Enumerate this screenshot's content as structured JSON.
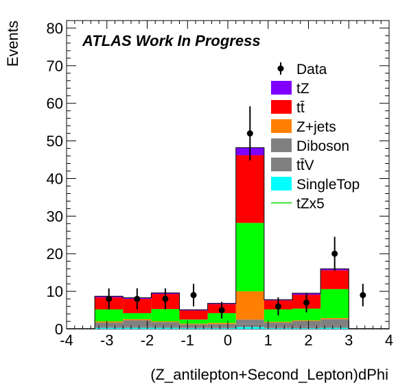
{
  "chart_data": {
    "type": "bar",
    "stacked": true,
    "title": "ATLAS Work In Progress",
    "xlabel": "(Z_antilepton+Second_Lepton)dPhi",
    "ylabel": "Events",
    "xlim": [
      -4,
      4
    ],
    "ylim": [
      0,
      82
    ],
    "x_ticks": [
      "-4",
      "-3",
      "-2",
      "-1",
      "0",
      "1",
      "2",
      "3",
      "4"
    ],
    "y_ticks": [
      "0",
      "10",
      "20",
      "30",
      "40",
      "50",
      "60",
      "70",
      "80"
    ],
    "bin_edges": [
      -3.3,
      -2.6,
      -1.9,
      -1.2,
      -0.5,
      0.2,
      0.9,
      1.6,
      2.3,
      3.0
    ],
    "stack_order": [
      "SingleTop",
      "ttV",
      "Diboson",
      "Z+jets",
      "tZx5",
      "tt",
      "tZ"
    ],
    "legend": {
      "position": "top-right",
      "entries": [
        {
          "label": "Data",
          "style": "marker"
        },
        {
          "label": "tZ",
          "color": "#7f00ff",
          "style": "fill"
        },
        {
          "label": "tt̄",
          "color": "#ff0000",
          "style": "fill"
        },
        {
          "label": "Z+jets",
          "color": "#ff7f00",
          "style": "fill"
        },
        {
          "label": "Diboson",
          "color": "#808080",
          "style": "fill"
        },
        {
          "label": "tt̄V",
          "color": "#808080",
          "style": "fill"
        },
        {
          "label": "SingleTop",
          "color": "#00ffff",
          "style": "fill"
        },
        {
          "label": "tZx5",
          "color": "#00dd00",
          "style": "line"
        }
      ]
    },
    "series": [
      {
        "name": "SingleTop",
        "color": "#00ffff",
        "values": [
          0.3,
          0.3,
          0.3,
          0.2,
          0.2,
          0.5,
          0.2,
          0.2,
          0.3
        ]
      },
      {
        "name": "ttV",
        "color": "#808080",
        "values": [
          0.4,
          0.4,
          0.3,
          0.2,
          0.2,
          0.8,
          0.3,
          0.4,
          0.5
        ]
      },
      {
        "name": "Diboson",
        "color": "#808080",
        "values": [
          1.0,
          1.6,
          1.2,
          0.8,
          0.9,
          1.2,
          1.2,
          1.5,
          1.8
        ]
      },
      {
        "name": "Z+jets",
        "color": "#ff7f00",
        "values": [
          0.3,
          0.3,
          0.2,
          0.2,
          0.3,
          7.5,
          0.2,
          0.2,
          0.3
        ]
      },
      {
        "name": "tZx5",
        "color": "#00ff00",
        "values": [
          3.2,
          1.6,
          3.3,
          1.1,
          2.6,
          18.2,
          3.3,
          3.1,
          7.7
        ]
      },
      {
        "name": "tt",
        "color": "#ff0000",
        "values": [
          3.2,
          3.8,
          4.0,
          2.4,
          2.4,
          18.0,
          2.4,
          3.7,
          5.0
        ]
      },
      {
        "name": "tZ",
        "color": "#7f00ff",
        "values": [
          0.3,
          0.3,
          0.3,
          0.2,
          0.2,
          2.0,
          0.2,
          0.4,
          0.4
        ]
      }
    ],
    "data": {
      "name": "Data",
      "x": [
        -2.95,
        -2.25,
        -1.55,
        -0.85,
        -0.15,
        0.55,
        1.25,
        1.95,
        2.65
      ],
      "y": [
        8,
        8,
        8,
        9,
        5,
        52,
        6,
        7,
        20
      ],
      "err": [
        2.8,
        2.8,
        2.8,
        3.0,
        2.2,
        7.2,
        2.4,
        2.6,
        4.5
      ]
    },
    "data_extra": {
      "x": 3.35,
      "y": 9,
      "err": 3.0
    }
  }
}
